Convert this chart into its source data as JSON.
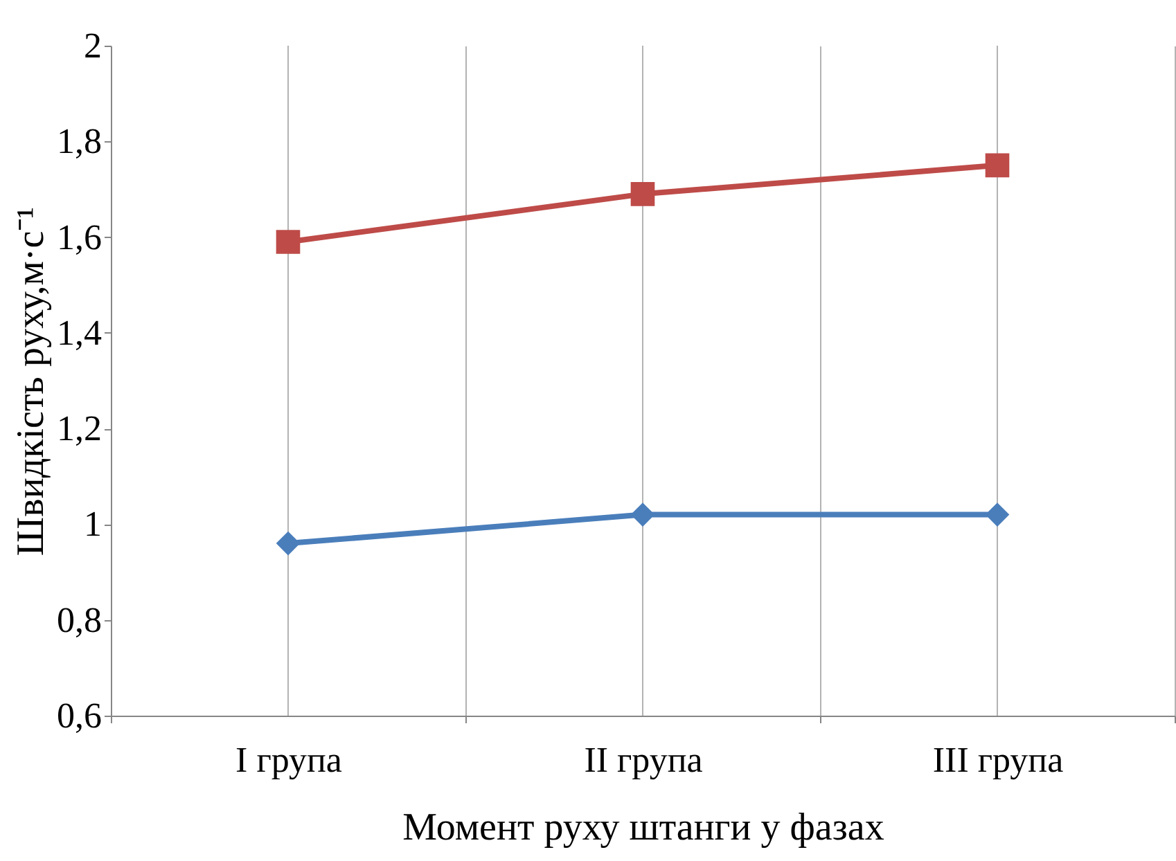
{
  "chart_data": {
    "type": "line",
    "xlabel": "Момент руху штанги у фазах",
    "ylabel": "Швидкість руху,м·с⁻¹",
    "categories": [
      "I група",
      "II група",
      "III група"
    ],
    "series": [
      {
        "color": "#4a7ebb",
        "marker": "diamond",
        "values": [
          0.96,
          1.02,
          1.02
        ]
      },
      {
        "color": "#be4b48",
        "marker": "square",
        "values": [
          1.59,
          1.69,
          1.75
        ]
      }
    ],
    "ylim": [
      0.6,
      2
    ],
    "yticks": [
      {
        "value": 0.6,
        "label": "0,6"
      },
      {
        "value": 0.8,
        "label": "0,8"
      },
      1,
      {
        "value": 1.2,
        "label": "1,2"
      },
      {
        "value": 1.4,
        "label": "1,4"
      },
      {
        "value": 1.6,
        "label": "1,6"
      },
      {
        "value": 1.8,
        "label": "1,8"
      },
      2
    ],
    "grid": "x"
  }
}
